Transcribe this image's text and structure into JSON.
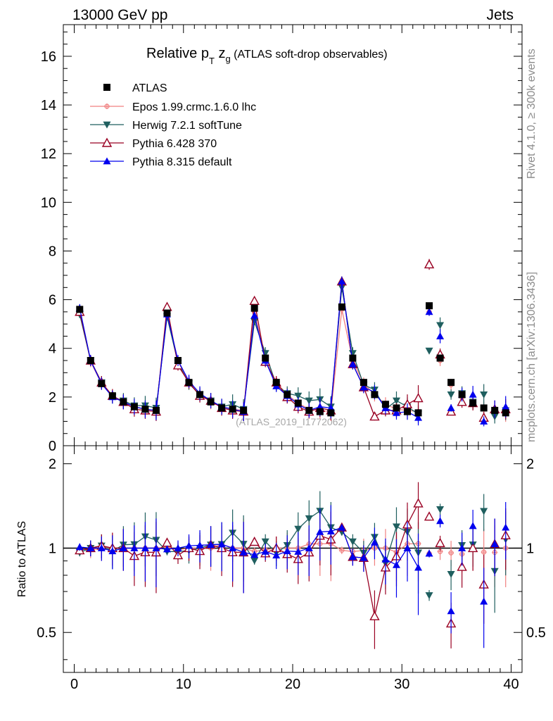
{
  "header": {
    "left": "13000 GeV pp",
    "right": "Jets"
  },
  "side_labels": {
    "top": "Rivet 4.1.0, ≥ 300k events",
    "bottom": "mcplots.cern.ch [arXiv:1306.3436]"
  },
  "watermark": "(ATLAS_2019_I1772062)",
  "title": {
    "main": "Relative p",
    "sub_t": "T",
    "z": " z",
    "sub_g": "g",
    "tail": " (ATLAS soft-drop observables)"
  },
  "ratio_ylabel": "Ratio to ATLAS",
  "colors": {
    "atlas": "#000000",
    "epos": "#f08080",
    "herwig": "#1f5f5f",
    "py6": "#990022",
    "py8": "#0000ee"
  },
  "chart_data": {
    "type": "line",
    "title": "Relative pT zg (ATLAS soft-drop observables)",
    "xlabel": "",
    "ylabel_ratio": "Ratio to ATLAS",
    "xlim": [
      -1,
      41
    ],
    "ylim_main": [
      0,
      17.3
    ],
    "ylim_ratio": [
      0.36,
      2.32
    ],
    "xticks": [
      "0",
      "10",
      "20",
      "30",
      "40"
    ],
    "yticks_main": [
      "0",
      "2",
      "4",
      "6",
      "8",
      "10",
      "12",
      "14",
      "16"
    ],
    "yticks_ratio": [
      "0.5",
      "1",
      "2"
    ],
    "x": [
      0.5,
      1.5,
      2.5,
      3.5,
      4.5,
      5.5,
      6.5,
      7.5,
      8.5,
      9.5,
      10.5,
      11.5,
      12.5,
      13.5,
      14.5,
      15.5,
      16.5,
      17.5,
      18.5,
      19.5,
      20.5,
      21.5,
      22.5,
      23.5,
      24.5,
      25.5,
      26.5,
      27.5,
      28.5,
      29.5,
      30.5,
      31.5,
      32.5,
      33.5,
      34.5,
      35.5,
      36.5,
      37.5,
      38.5,
      39.5
    ],
    "series": [
      {
        "name": "ATLAS",
        "marker": "square",
        "values": [
          5.6,
          3.5,
          2.55,
          2.05,
          1.8,
          1.6,
          1.5,
          1.45,
          5.45,
          3.5,
          2.6,
          2.1,
          1.8,
          1.55,
          1.5,
          1.45,
          5.65,
          3.6,
          2.6,
          2.1,
          1.75,
          1.45,
          1.4,
          1.35,
          5.7,
          3.6,
          2.6,
          2.1,
          1.7,
          1.55,
          1.4,
          1.35,
          5.75,
          3.6,
          2.6,
          2.1,
          1.75,
          1.55,
          1.45,
          1.35
        ]
      },
      {
        "name": "Epos 1.99.crmc.1.6.0 lhc",
        "marker": "cross",
        "values": [
          5.55,
          3.45,
          2.55,
          2.05,
          1.8,
          1.6,
          1.5,
          1.45,
          5.5,
          3.45,
          2.6,
          2.1,
          1.8,
          1.6,
          1.5,
          1.45,
          5.5,
          3.55,
          2.6,
          2.1,
          1.75,
          1.5,
          1.45,
          1.4,
          5.6,
          3.5,
          2.55,
          2.1,
          1.7,
          1.5,
          1.45,
          1.4,
          5.5,
          3.5,
          2.5,
          2.0,
          1.75,
          1.5,
          1.4,
          1.35
        ]
      },
      {
        "name": "Herwig 7.2.1 softTune",
        "marker": "tri-down",
        "values": [
          5.4,
          3.5,
          2.6,
          2.0,
          1.85,
          1.65,
          1.65,
          1.55,
          5.3,
          3.4,
          2.55,
          2.1,
          1.85,
          1.6,
          1.7,
          1.5,
          5.1,
          3.8,
          2.5,
          2.15,
          2.05,
          1.85,
          1.9,
          1.6,
          6.5,
          3.8,
          2.5,
          2.3,
          1.5,
          1.85,
          1.6,
          1.3,
          3.9,
          4.95,
          2.1,
          2.15,
          1.8,
          2.1,
          1.2,
          1.45
        ]
      },
      {
        "name": "Pythia 6.428 370",
        "marker": "tri-up-open",
        "values": [
          5.5,
          3.5,
          2.6,
          2.05,
          1.8,
          1.5,
          1.45,
          1.4,
          5.7,
          3.3,
          2.6,
          2.05,
          1.85,
          1.55,
          1.45,
          1.4,
          5.95,
          3.45,
          2.6,
          2.0,
          1.6,
          1.4,
          1.55,
          1.45,
          6.75,
          3.35,
          2.4,
          1.2,
          1.45,
          1.45,
          1.7,
          1.95,
          7.45,
          3.75,
          1.4,
          1.8,
          1.75,
          1.15,
          1.5,
          1.5
        ]
      },
      {
        "name": "Pythia 8.315 default",
        "marker": "tri-up",
        "values": [
          5.65,
          3.5,
          2.55,
          2.0,
          1.8,
          1.6,
          1.5,
          1.45,
          5.4,
          3.5,
          2.65,
          2.15,
          1.85,
          1.6,
          1.5,
          1.4,
          5.35,
          3.5,
          2.45,
          2.05,
          1.7,
          1.45,
          1.6,
          1.55,
          6.75,
          3.35,
          2.4,
          2.2,
          1.55,
          1.35,
          1.4,
          1.15,
          5.5,
          4.5,
          1.55,
          2.1,
          2.1,
          1.0,
          1.5,
          1.6
        ]
      }
    ]
  }
}
